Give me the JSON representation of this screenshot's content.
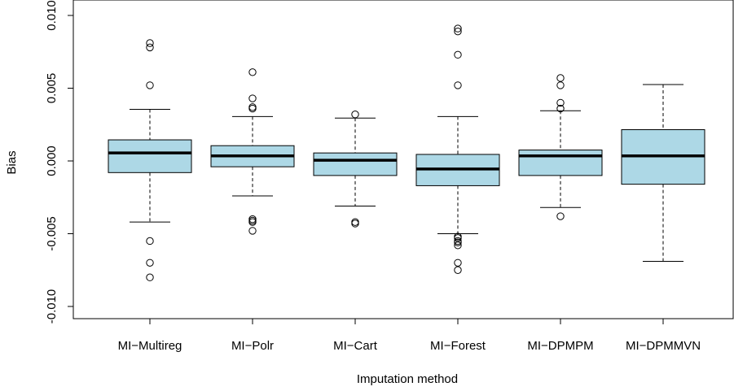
{
  "chart_data": {
    "type": "boxplot",
    "title": "",
    "xlabel": "Imputation method",
    "ylabel": "Bias",
    "ylim": [
      -0.0112,
      0.01
    ],
    "yticks": [
      -0.01,
      -0.005,
      0.0,
      0.005,
      0.01
    ],
    "ytick_labels": [
      "-0.010",
      "-0.005",
      "0.000",
      "0.005",
      "0.010"
    ],
    "box_color": "#add8e6",
    "categories": [
      "MI−Multireg",
      "MI−Polr",
      "MI−Cart",
      "MI−Forest",
      "MI−DPMPM",
      "MI−DPMMVN"
    ],
    "boxes": [
      {
        "name": "MI−Multireg",
        "whisker_low": -0.0042,
        "q1": -0.0008,
        "median": 0.00055,
        "q3": 0.00145,
        "whisker_high": 0.00355,
        "outliers": [
          0.0081,
          0.0078,
          0.0052,
          -0.0055,
          -0.007,
          -0.008
        ]
      },
      {
        "name": "MI−Polr",
        "whisker_low": -0.0024,
        "q1": -0.0004,
        "median": 0.00035,
        "q3": 0.00105,
        "whisker_high": 0.00305,
        "outliers": [
          0.0061,
          0.0043,
          0.0037,
          0.0036,
          -0.004,
          -0.0041,
          -0.0042,
          -0.0048
        ]
      },
      {
        "name": "MI−Cart",
        "whisker_low": -0.0031,
        "q1": -0.001,
        "median": 5e-05,
        "q3": 0.00055,
        "whisker_high": 0.00295,
        "outliers": [
          0.0032,
          -0.0042,
          -0.0043
        ]
      },
      {
        "name": "MI−Forest",
        "whisker_low": -0.005,
        "q1": -0.0017,
        "median": -0.00055,
        "q3": 0.00045,
        "whisker_high": 0.00305,
        "outliers": [
          0.0091,
          0.0089,
          0.0073,
          0.0052,
          -0.0052,
          -0.0053,
          -0.0055,
          -0.0056,
          -0.0058,
          -0.007,
          -0.0075
        ]
      },
      {
        "name": "MI−DPMPM",
        "whisker_low": -0.0032,
        "q1": -0.001,
        "median": 0.00035,
        "q3": 0.00075,
        "whisker_high": 0.00345,
        "outliers": [
          0.0057,
          0.0052,
          0.004,
          0.0036,
          -0.0038
        ]
      },
      {
        "name": "MI−DPMMVN",
        "whisker_low": -0.0069,
        "q1": -0.0016,
        "median": 0.00035,
        "q3": 0.00215,
        "whisker_high": 0.00525,
        "outliers": []
      }
    ]
  }
}
